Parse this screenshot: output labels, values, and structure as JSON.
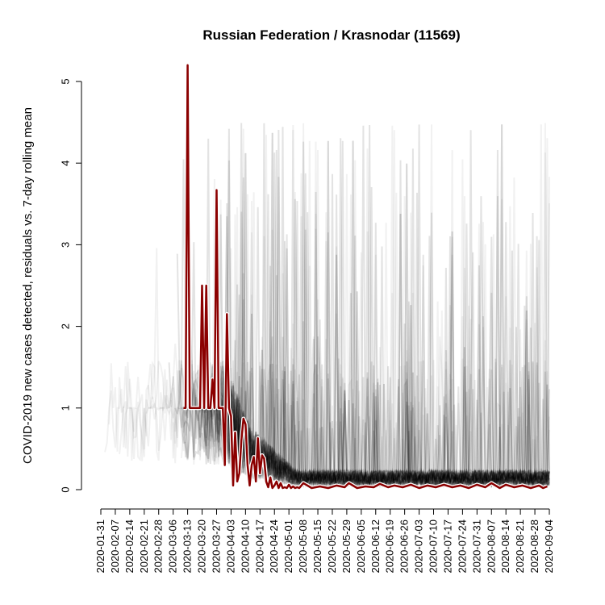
{
  "chart_data": {
    "type": "line",
    "title": "Russian Federation / Krasnodar (11569)",
    "xlabel": "",
    "ylabel": "COVID-2019 new cases detected, residuals vs. 7-day rolling mean",
    "ylim": [
      0,
      5
    ],
    "y_ticks": [
      "0",
      "1",
      "2",
      "3",
      "4",
      "5"
    ],
    "x_range": [
      "2020-01-31",
      "2020-09-04"
    ],
    "x_ticks": [
      "2020-01-31",
      "2020-02-07",
      "2020-02-14",
      "2020-02-21",
      "2020-02-28",
      "2020-03-06",
      "2020-03-13",
      "2020-03-20",
      "2020-03-27",
      "2020-04-03",
      "2020-04-10",
      "2020-04-17",
      "2020-04-24",
      "2020-05-01",
      "2020-05-08",
      "2020-05-15",
      "2020-05-22",
      "2020-05-29",
      "2020-06-05",
      "2020-06-12",
      "2020-06-19",
      "2020-06-26",
      "2020-07-03",
      "2020-07-10",
      "2020-07-17",
      "2020-07-24",
      "2020-07-31",
      "2020-08-07",
      "2020-08-14",
      "2020-08-21",
      "2020-08-28",
      "2020-09-04"
    ],
    "grid": false,
    "background_series_color": "#000000",
    "highlight_color": "#8b0000",
    "series": [
      {
        "highlight": true,
        "x": [
          "2020-03-11",
          "2020-03-12",
          "2020-03-13",
          "2020-03-14",
          "2020-03-15",
          "2020-03-16",
          "2020-03-17",
          "2020-03-18",
          "2020-03-19",
          "2020-03-20",
          "2020-03-21",
          "2020-03-22",
          "2020-03-23",
          "2020-03-24",
          "2020-03-25",
          "2020-03-26",
          "2020-03-27",
          "2020-03-28",
          "2020-03-29",
          "2020-03-30",
          "2020-03-31",
          "2020-04-01",
          "2020-04-02",
          "2020-04-03",
          "2020-04-04",
          "2020-04-05",
          "2020-04-06",
          "2020-04-07",
          "2020-04-08",
          "2020-04-09",
          "2020-04-10",
          "2020-04-11",
          "2020-04-12",
          "2020-04-13",
          "2020-04-14",
          "2020-04-15",
          "2020-04-16",
          "2020-04-17",
          "2020-04-18",
          "2020-04-19",
          "2020-04-20",
          "2020-04-21",
          "2020-04-22",
          "2020-04-23",
          "2020-04-24",
          "2020-04-25",
          "2020-04-26",
          "2020-04-27",
          "2020-04-28",
          "2020-04-29",
          "2020-04-30",
          "2020-05-01",
          "2020-05-02",
          "2020-05-03",
          "2020-05-04",
          "2020-05-05",
          "2020-05-06",
          "2020-05-08",
          "2020-05-12",
          "2020-05-16",
          "2020-05-20",
          "2020-05-24",
          "2020-05-28",
          "2020-05-30",
          "2020-06-03",
          "2020-06-07",
          "2020-06-11",
          "2020-06-14",
          "2020-06-18",
          "2020-06-21",
          "2020-06-25",
          "2020-06-29",
          "2020-07-03",
          "2020-07-07",
          "2020-07-11",
          "2020-07-15",
          "2020-07-19",
          "2020-07-23",
          "2020-07-27",
          "2020-07-31",
          "2020-08-04",
          "2020-08-07",
          "2020-08-11",
          "2020-08-14",
          "2020-08-18",
          "2020-08-22",
          "2020-08-26",
          "2020-08-30",
          "2020-09-01",
          "2020-09-03"
        ],
        "values": [
          1.0,
          1.0,
          5.2,
          1.0,
          1.0,
          1.0,
          1.0,
          1.0,
          1.0,
          2.5,
          1.0,
          2.5,
          1.0,
          1.0,
          1.35,
          1.0,
          3.67,
          1.0,
          1.0,
          1.0,
          0.3,
          2.15,
          1.0,
          0.9,
          0.05,
          0.7,
          0.1,
          0.2,
          0.6,
          0.87,
          0.8,
          0.3,
          0.05,
          0.3,
          0.4,
          0.1,
          0.63,
          0.2,
          0.42,
          0.38,
          0.1,
          0.03,
          0.15,
          0.02,
          0.05,
          0.1,
          0.02,
          0.08,
          0.02,
          0.03,
          0.02,
          0.06,
          0.02,
          0.04,
          0.02,
          0.03,
          0.02,
          0.08,
          0.02,
          0.04,
          0.02,
          0.05,
          0.03,
          0.08,
          0.02,
          0.04,
          0.03,
          0.07,
          0.03,
          0.05,
          0.03,
          0.06,
          0.02,
          0.05,
          0.03,
          0.06,
          0.03,
          0.05,
          0.02,
          0.06,
          0.03,
          0.08,
          0.02,
          0.06,
          0.03,
          0.05,
          0.02,
          0.05,
          0.02,
          0.04
        ]
      }
    ]
  }
}
